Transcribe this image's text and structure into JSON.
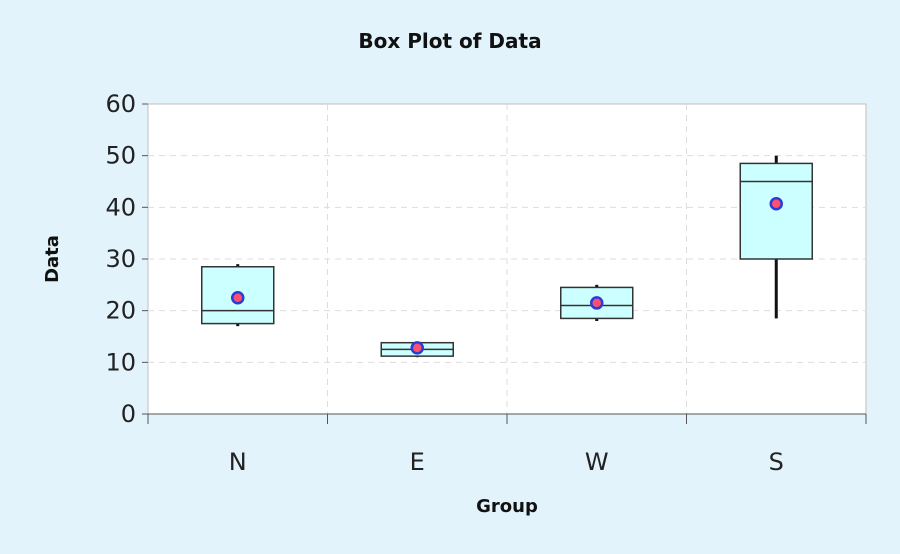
{
  "chart_data": {
    "type": "box",
    "title": "Box Plot of Data",
    "xlabel": "Group",
    "ylabel": "Data",
    "ylim": [
      0,
      60
    ],
    "yticks": [
      0,
      10,
      20,
      30,
      40,
      50,
      60
    ],
    "grid": true,
    "categories": [
      "N",
      "E",
      "W",
      "S"
    ],
    "boxes": [
      {
        "category": "N",
        "min": 17,
        "q1": 17.5,
        "median": 20,
        "q3": 28.5,
        "max": 29,
        "mean": 22.5
      },
      {
        "category": "E",
        "min": 11,
        "q1": 11.2,
        "median": 12.5,
        "q3": 13.8,
        "max": 14,
        "mean": 12.8
      },
      {
        "category": "W",
        "min": 18,
        "q1": 18.5,
        "median": 21,
        "q3": 24.5,
        "max": 25,
        "mean": 21.5
      },
      {
        "category": "S",
        "min": 18.5,
        "q1": 30,
        "median": 45,
        "q3": 48.5,
        "max": 50,
        "mean": 40.7
      }
    ],
    "colors": {
      "box_fill": "#ccffff",
      "box_stroke": "#333333",
      "mean_fill": "#ff4f6e",
      "mean_stroke": "#2a3bd8",
      "plot_bg": "#ffffff",
      "grid": "#dddddd"
    }
  }
}
